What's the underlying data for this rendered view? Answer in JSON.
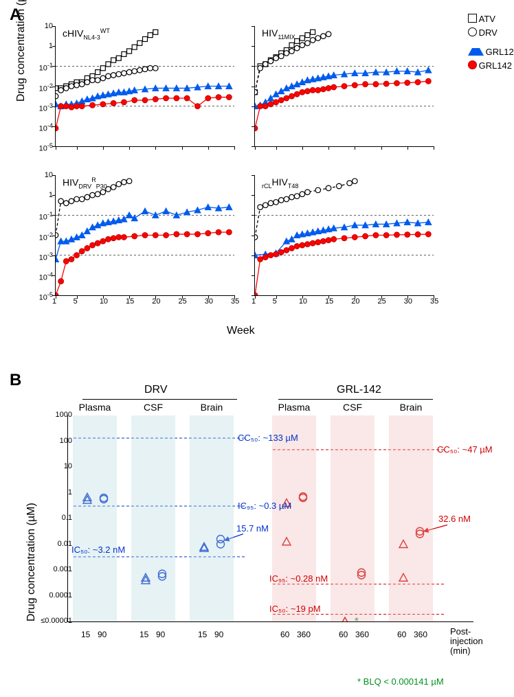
{
  "panelA_letter": "A",
  "panelB_letter": "B",
  "axisA_y": "Drug concentration (µM)",
  "axisA_x": "Week",
  "axisB_y": "Drug concentration (µM)",
  "legendA": {
    "atv": "ATV",
    "drv": "DRV",
    "g121": "GRL121",
    "g142": "GRL142"
  },
  "y_tick_exp": [
    1,
    0,
    -1,
    -2,
    -3,
    -4,
    -5
  ],
  "x_ticks": [
    1,
    5,
    10,
    15,
    20,
    25,
    30,
    35
  ],
  "subplots": [
    {
      "title_html": "cHIV<sub>NL4-3</sub><sup>WT</sup>"
    },
    {
      "title_html": "HIV<sub>11MIX</sub>"
    },
    {
      "title_html": "HIV<sub>DRV</sub><sup>R</sup><sub>P30</sub>"
    },
    {
      "title_html": "<sub>rCL</sub>HIV<sub>T48</sub>"
    }
  ],
  "series_colors": {
    "atv": "#000000",
    "drv": "#000000",
    "grl121": "#005bec",
    "grl142": "#ff0000"
  },
  "line_style": {
    "atv": "4 3",
    "drv": "4 3",
    "grl121": "none",
    "grl142": "none"
  },
  "_comment": "Data for Panel A. x=week, y=log10(conc/µM) so y in [-5,1]",
  "panelA_data": {
    "TL": {
      "atv": [
        [
          1,
          -2.1
        ],
        [
          2,
          -2.1
        ],
        [
          3,
          -2.0
        ],
        [
          4,
          -1.9
        ],
        [
          5,
          -1.8
        ],
        [
          6,
          -1.8
        ],
        [
          7,
          -1.6
        ],
        [
          8,
          -1.5
        ],
        [
          9,
          -1.3
        ],
        [
          10,
          -1.1
        ],
        [
          11,
          -0.9
        ],
        [
          12,
          -0.7
        ],
        [
          13,
          -0.6
        ],
        [
          14,
          -0.4
        ],
        [
          15,
          -0.25
        ],
        [
          16,
          -0.05
        ],
        [
          17,
          0.15
        ],
        [
          18,
          0.35
        ],
        [
          19,
          0.55
        ],
        [
          20,
          0.7
        ]
      ],
      "drv": [
        [
          1,
          -2.5
        ],
        [
          2,
          -2.2
        ],
        [
          3,
          -2.1
        ],
        [
          4,
          -2.0
        ],
        [
          5,
          -1.95
        ],
        [
          6,
          -1.9
        ],
        [
          7,
          -1.8
        ],
        [
          8,
          -1.7
        ],
        [
          9,
          -1.7
        ],
        [
          10,
          -1.6
        ],
        [
          11,
          -1.5
        ],
        [
          12,
          -1.45
        ],
        [
          13,
          -1.4
        ],
        [
          14,
          -1.35
        ],
        [
          15,
          -1.3
        ],
        [
          16,
          -1.25
        ],
        [
          17,
          -1.2
        ],
        [
          18,
          -1.15
        ],
        [
          19,
          -1.1
        ],
        [
          20,
          -1.1
        ]
      ],
      "grl121": [
        [
          1,
          -2.9
        ],
        [
          2,
          -3.0
        ],
        [
          3,
          -2.9
        ],
        [
          4,
          -2.9
        ],
        [
          5,
          -2.85
        ],
        [
          6,
          -2.75
        ],
        [
          7,
          -2.65
        ],
        [
          8,
          -2.6
        ],
        [
          9,
          -2.5
        ],
        [
          10,
          -2.45
        ],
        [
          11,
          -2.4
        ],
        [
          12,
          -2.35
        ],
        [
          13,
          -2.3
        ],
        [
          14,
          -2.3
        ],
        [
          15,
          -2.25
        ],
        [
          16,
          -2.2
        ],
        [
          18,
          -2.15
        ],
        [
          20,
          -2.1
        ],
        [
          22,
          -2.1
        ],
        [
          24,
          -2.1
        ],
        [
          26,
          -2.1
        ],
        [
          28,
          -2.05
        ],
        [
          30,
          -2.0
        ],
        [
          32,
          -2.0
        ],
        [
          34,
          -2.0
        ]
      ],
      "grl142": [
        [
          1,
          -4.1
        ],
        [
          2,
          -3.0
        ],
        [
          3,
          -3.0
        ],
        [
          4,
          -3.05
        ],
        [
          5,
          -3.0
        ],
        [
          6,
          -3.0
        ],
        [
          8,
          -2.95
        ],
        [
          10,
          -2.9
        ],
        [
          12,
          -2.85
        ],
        [
          14,
          -2.8
        ],
        [
          16,
          -2.7
        ],
        [
          18,
          -2.7
        ],
        [
          20,
          -2.65
        ],
        [
          22,
          -2.6
        ],
        [
          24,
          -2.6
        ],
        [
          26,
          -2.6
        ],
        [
          28,
          -3.0
        ],
        [
          30,
          -2.6
        ],
        [
          32,
          -2.55
        ],
        [
          34,
          -2.55
        ]
      ]
    },
    "TR": {
      "atv": [
        [
          1,
          -2.3
        ],
        [
          2,
          -1.0
        ],
        [
          3,
          -0.9
        ],
        [
          4,
          -0.7
        ],
        [
          5,
          -0.55
        ],
        [
          6,
          -0.35
        ],
        [
          7,
          -0.2
        ],
        [
          8,
          0.05
        ],
        [
          9,
          0.25
        ],
        [
          10,
          0.4
        ],
        [
          11,
          0.55
        ],
        [
          12,
          0.7
        ]
      ],
      "drv": [
        [
          1,
          -2.3
        ],
        [
          2,
          -1.1
        ],
        [
          3,
          -0.9
        ],
        [
          4,
          -0.75
        ],
        [
          5,
          -0.6
        ],
        [
          6,
          -0.5
        ],
        [
          7,
          -0.35
        ],
        [
          8,
          -0.25
        ],
        [
          9,
          -0.1
        ],
        [
          10,
          0.05
        ],
        [
          11,
          0.15
        ],
        [
          12,
          0.3
        ],
        [
          13,
          0.4
        ],
        [
          14,
          0.5
        ],
        [
          15,
          0.6
        ]
      ],
      "grl121": [
        [
          1,
          -3.0
        ],
        [
          2,
          -2.95
        ],
        [
          3,
          -2.8
        ],
        [
          4,
          -2.6
        ],
        [
          5,
          -2.4
        ],
        [
          6,
          -2.25
        ],
        [
          7,
          -2.1
        ],
        [
          8,
          -2.0
        ],
        [
          9,
          -1.9
        ],
        [
          10,
          -1.8
        ],
        [
          11,
          -1.7
        ],
        [
          12,
          -1.65
        ],
        [
          13,
          -1.6
        ],
        [
          14,
          -1.55
        ],
        [
          15,
          -1.5
        ],
        [
          16,
          -1.45
        ],
        [
          18,
          -1.4
        ],
        [
          20,
          -1.35
        ],
        [
          22,
          -1.35
        ],
        [
          24,
          -1.3
        ],
        [
          26,
          -1.3
        ],
        [
          28,
          -1.25
        ],
        [
          30,
          -1.25
        ],
        [
          32,
          -1.3
        ],
        [
          34,
          -1.2
        ]
      ],
      "grl142": [
        [
          1,
          -4.1
        ],
        [
          2,
          -3.0
        ],
        [
          3,
          -3.0
        ],
        [
          4,
          -2.9
        ],
        [
          5,
          -2.8
        ],
        [
          6,
          -2.7
        ],
        [
          7,
          -2.6
        ],
        [
          8,
          -2.5
        ],
        [
          9,
          -2.4
        ],
        [
          10,
          -2.3
        ],
        [
          11,
          -2.25
        ],
        [
          12,
          -2.2
        ],
        [
          13,
          -2.2
        ],
        [
          14,
          -2.15
        ],
        [
          15,
          -2.1
        ],
        [
          16,
          -2.05
        ],
        [
          18,
          -2.0
        ],
        [
          20,
          -1.95
        ],
        [
          22,
          -1.9
        ],
        [
          24,
          -1.9
        ],
        [
          26,
          -1.88
        ],
        [
          28,
          -1.85
        ],
        [
          30,
          -1.83
        ],
        [
          32,
          -1.8
        ],
        [
          34,
          -1.75
        ]
      ]
    },
    "BL": {
      "drv": [
        [
          1,
          -2.0
        ],
        [
          2,
          -0.3
        ],
        [
          3,
          -0.4
        ],
        [
          4,
          -0.3
        ],
        [
          5,
          -0.2
        ],
        [
          6,
          -0.2
        ],
        [
          7,
          -0.1
        ],
        [
          8,
          0.0
        ],
        [
          9,
          0.05
        ],
        [
          10,
          0.15
        ],
        [
          11,
          0.3
        ],
        [
          12,
          0.4
        ],
        [
          13,
          0.55
        ],
        [
          14,
          0.65
        ],
        [
          15,
          0.7
        ]
      ],
      "grl121": [
        [
          1,
          -3.2
        ],
        [
          2,
          -2.3
        ],
        [
          3,
          -2.3
        ],
        [
          4,
          -2.2
        ],
        [
          5,
          -2.1
        ],
        [
          6,
          -2.0
        ],
        [
          7,
          -1.8
        ],
        [
          8,
          -1.6
        ],
        [
          9,
          -1.5
        ],
        [
          10,
          -1.4
        ],
        [
          11,
          -1.35
        ],
        [
          12,
          -1.3
        ],
        [
          13,
          -1.25
        ],
        [
          14,
          -1.2
        ],
        [
          15,
          -1.0
        ],
        [
          16,
          -1.15
        ],
        [
          18,
          -0.8
        ],
        [
          20,
          -1.0
        ],
        [
          22,
          -0.8
        ],
        [
          24,
          -1.0
        ],
        [
          26,
          -0.85
        ],
        [
          28,
          -0.75
        ],
        [
          30,
          -0.6
        ],
        [
          32,
          -0.65
        ],
        [
          34,
          -0.6
        ]
      ],
      "grl142": [
        [
          1,
          -5.0
        ],
        [
          2,
          -4.3
        ],
        [
          3,
          -3.3
        ],
        [
          4,
          -3.2
        ],
        [
          5,
          -3.0
        ],
        [
          6,
          -2.8
        ],
        [
          7,
          -2.65
        ],
        [
          8,
          -2.5
        ],
        [
          9,
          -2.4
        ],
        [
          10,
          -2.3
        ],
        [
          11,
          -2.2
        ],
        [
          12,
          -2.15
        ],
        [
          13,
          -2.1
        ],
        [
          14,
          -2.1
        ],
        [
          16,
          -2.05
        ],
        [
          18,
          -2.0
        ],
        [
          20,
          -2.0
        ],
        [
          22,
          -2.0
        ],
        [
          24,
          -1.95
        ],
        [
          26,
          -1.95
        ],
        [
          28,
          -1.95
        ],
        [
          30,
          -1.9
        ],
        [
          32,
          -1.85
        ],
        [
          34,
          -1.85
        ]
      ]
    },
    "BR": {
      "drv": [
        [
          1,
          -2.1
        ],
        [
          2,
          -0.6
        ],
        [
          3,
          -0.5
        ],
        [
          4,
          -0.4
        ],
        [
          5,
          -0.35
        ],
        [
          6,
          -0.25
        ],
        [
          7,
          -0.2
        ],
        [
          8,
          -0.1
        ],
        [
          9,
          -0.05
        ],
        [
          10,
          0.05
        ],
        [
          11,
          0.15
        ],
        [
          13,
          0.25
        ],
        [
          15,
          0.35
        ],
        [
          17,
          0.45
        ],
        [
          19,
          0.6
        ],
        [
          20,
          0.7
        ]
      ],
      "grl121": [
        [
          1,
          -3.0
        ],
        [
          3,
          -2.95
        ],
        [
          5,
          -2.9
        ],
        [
          7,
          -2.3
        ],
        [
          8,
          -2.2
        ],
        [
          9,
          -2.0
        ],
        [
          10,
          -1.95
        ],
        [
          11,
          -1.9
        ],
        [
          12,
          -1.85
        ],
        [
          13,
          -1.8
        ],
        [
          14,
          -1.75
        ],
        [
          15,
          -1.7
        ],
        [
          16,
          -1.65
        ],
        [
          18,
          -1.6
        ],
        [
          20,
          -1.5
        ],
        [
          22,
          -1.5
        ],
        [
          24,
          -1.45
        ],
        [
          26,
          -1.45
        ],
        [
          28,
          -1.4
        ],
        [
          30,
          -1.35
        ],
        [
          32,
          -1.4
        ],
        [
          34,
          -1.35
        ]
      ],
      "grl142": [
        [
          1,
          -5.0
        ],
        [
          2,
          -3.2
        ],
        [
          3,
          -3.1
        ],
        [
          4,
          -3.0
        ],
        [
          5,
          -2.95
        ],
        [
          6,
          -2.85
        ],
        [
          7,
          -2.75
        ],
        [
          8,
          -2.65
        ],
        [
          9,
          -2.55
        ],
        [
          10,
          -2.5
        ],
        [
          11,
          -2.45
        ],
        [
          12,
          -2.4
        ],
        [
          13,
          -2.35
        ],
        [
          14,
          -2.3
        ],
        [
          15,
          -2.25
        ],
        [
          16,
          -2.2
        ],
        [
          18,
          -2.15
        ],
        [
          20,
          -2.1
        ],
        [
          22,
          -2.05
        ],
        [
          24,
          -2.0
        ],
        [
          26,
          -2.0
        ],
        [
          28,
          -1.98
        ],
        [
          30,
          -1.97
        ],
        [
          32,
          -1.96
        ],
        [
          34,
          -1.95
        ]
      ]
    }
  },
  "ref_lines_A": [
    -1,
    -3
  ],
  "panelB": {
    "groups": [
      {
        "title": "DRV",
        "columns": [
          "Plasma",
          "CSF",
          "Brain"
        ],
        "xticks": [
          "15",
          "90"
        ],
        "box_class": "blue"
      },
      {
        "title": "GRL-142",
        "columns": [
          "Plasma",
          "CSF",
          "Brain"
        ],
        "xticks": [
          "60",
          "360"
        ],
        "box_class": "pink"
      }
    ],
    "y_ticks": [
      "1000",
      "100",
      "10",
      "1",
      "0.1",
      "0.01",
      "0.001",
      "0.0001",
      "≤0.00001"
    ],
    "y_log_range": [
      -5,
      3
    ],
    "_comment": "points: [col_index(0-5), x_offset(0|1 triangle/circle), log10val, shape]",
    "points": {
      "drv": [
        [
          0,
          0,
          -0.18,
          "tri"
        ],
        [
          0,
          0,
          -0.28,
          "tri"
        ],
        [
          0,
          1,
          -0.2,
          "circ"
        ],
        [
          0,
          1,
          -0.25,
          "circ"
        ],
        [
          1,
          0,
          -3.4,
          "tri"
        ],
        [
          1,
          0,
          -3.3,
          "tri"
        ],
        [
          1,
          1,
          -3.15,
          "circ"
        ],
        [
          1,
          1,
          -3.25,
          "circ"
        ],
        [
          2,
          0,
          -2.1,
          "tri"
        ],
        [
          2,
          0,
          -2.15,
          "tri"
        ],
        [
          2,
          1,
          -2.0,
          "circ"
        ],
        [
          2,
          1,
          -1.8,
          "circ"
        ]
      ],
      "grl": [
        [
          3,
          0,
          -0.4,
          "tri"
        ],
        [
          3,
          0,
          -1.9,
          "tri"
        ],
        [
          3,
          1,
          -0.15,
          "circ"
        ],
        [
          3,
          1,
          -0.2,
          "circ"
        ],
        [
          4,
          0,
          -5,
          "tri"
        ],
        [
          4,
          0,
          -5,
          "tri"
        ],
        [
          4,
          1,
          -3.1,
          "circ"
        ],
        [
          4,
          1,
          -3.2,
          "circ"
        ],
        [
          5,
          0,
          -2.0,
          "tri"
        ],
        [
          5,
          0,
          -3.3,
          "tri"
        ],
        [
          5,
          1,
          -1.6,
          "circ"
        ],
        [
          5,
          1,
          -1.5,
          "circ"
        ]
      ]
    },
    "ref": {
      "drv": [
        {
          "y": 2.12,
          "label": "CC₅₀: ~133 µM"
        },
        {
          "y": -0.52,
          "label": "IC₉₅: ~0.3 µM"
        },
        {
          "y": -2.49,
          "label": "IC₅₀: ~3.2 nM"
        }
      ],
      "grl": [
        {
          "y": 1.67,
          "label": "CC₅₀: ~47 µM"
        },
        {
          "y": -3.55,
          "label": "IC₉₅: ~0.28 nM"
        },
        {
          "y": -4.72,
          "label": "IC₅₀: ~19 pM"
        }
      ]
    },
    "ann_drv_nm": "15.7 nM",
    "ann_grl_nm": "32.6 nM",
    "post_inj": "Post-injection\n(min)",
    "blq": "* BLQ < 0.000141 µM"
  }
}
